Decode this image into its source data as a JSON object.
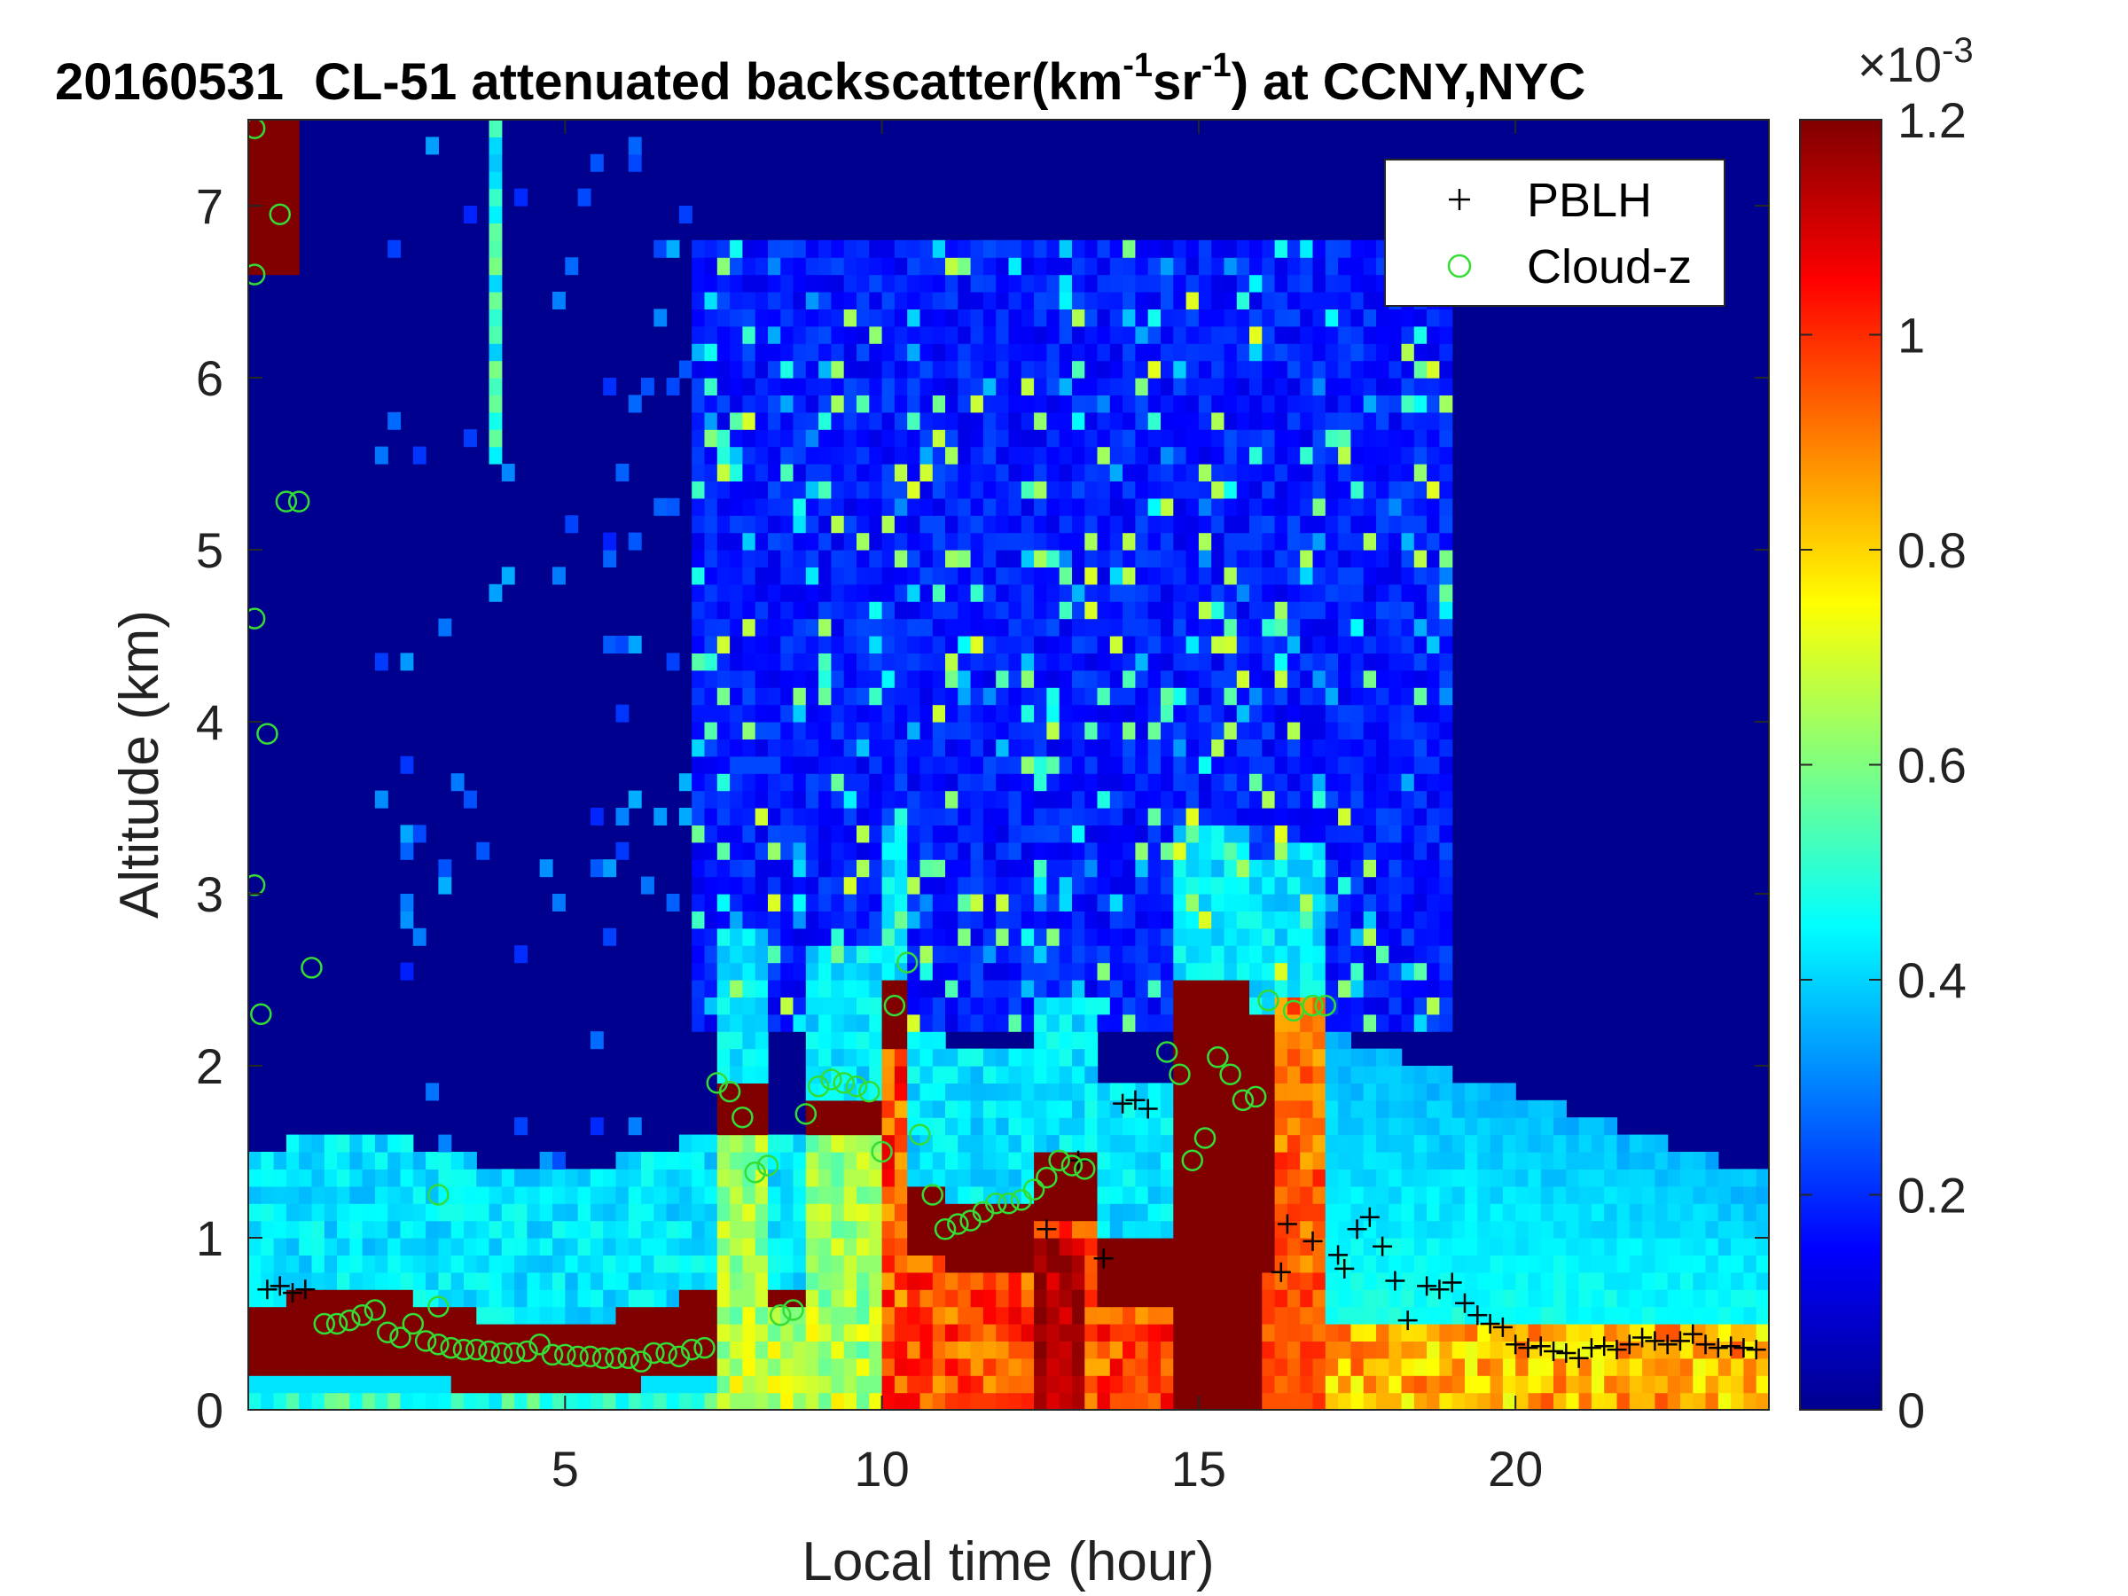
{
  "chart_data": {
    "type": "heatmap",
    "title": {
      "date": "20160531",
      "prefix": "CL-51 attenuated backscatter(km",
      "sup1": "-1",
      "mid": "sr",
      "sup2": "-1",
      "suffix": ") at CCNY,NYC"
    },
    "xlabel": "Local time (hour)",
    "ylabel": "Altitude (km)",
    "xlim": [
      0,
      24
    ],
    "ylim": [
      0,
      7.5
    ],
    "xticks": [
      5,
      10,
      15,
      20
    ],
    "yticks": [
      0,
      1,
      2,
      3,
      4,
      5,
      6,
      7
    ],
    "colorbar": {
      "colormap": "jet",
      "clim": [
        0,
        1.2
      ],
      "ticks": [
        0,
        0.2,
        0.4,
        0.6,
        0.8,
        1,
        1.2
      ],
      "tick_labels": [
        "0",
        "0.2",
        "0.4",
        "0.6",
        "0.8",
        "1",
        "1.2"
      ],
      "exponent_base": "×10",
      "exponent": "-3"
    },
    "legend": {
      "placement": "top-right",
      "entries": [
        {
          "label": "PBLH",
          "marker": "plus",
          "color": "#000000"
        },
        {
          "label": "Cloud-z",
          "marker": "circle",
          "color": "#33dd33"
        }
      ]
    },
    "grid": false,
    "series": [
      {
        "name": "PBLH",
        "marker": "plus",
        "color": "#000000",
        "x": [
          0.3,
          0.5,
          0.7,
          0.9,
          12.6,
          13.1,
          13.5,
          13.8,
          14.0,
          14.2,
          16.3,
          16.4,
          16.8,
          17.2,
          17.3,
          17.5,
          17.7,
          17.9,
          18.1,
          18.3,
          18.6,
          18.8,
          19.0,
          19.2,
          19.4,
          19.6,
          19.8,
          20.0,
          20.2,
          20.4,
          20.6,
          20.8,
          21.0,
          21.2,
          21.4,
          21.6,
          21.8,
          22.0,
          22.2,
          22.4,
          22.6,
          22.8,
          23.0,
          23.2,
          23.4,
          23.6,
          23.8
        ],
        "y": [
          0.7,
          0.72,
          0.68,
          0.7,
          1.05,
          1.45,
          0.88,
          1.78,
          1.8,
          1.75,
          0.8,
          1.08,
          0.98,
          0.9,
          0.82,
          1.05,
          1.12,
          0.95,
          0.75,
          0.52,
          0.72,
          0.7,
          0.74,
          0.62,
          0.55,
          0.5,
          0.48,
          0.38,
          0.36,
          0.37,
          0.34,
          0.33,
          0.3,
          0.36,
          0.37,
          0.35,
          0.38,
          0.42,
          0.4,
          0.38,
          0.4,
          0.44,
          0.38,
          0.36,
          0.37,
          0.36,
          0.35
        ]
      },
      {
        "name": "Cloud-z",
        "marker": "circle",
        "color": "#33dd33",
        "x": [
          0.1,
          0.1,
          0.1,
          0.1,
          0.2,
          0.3,
          0.5,
          0.6,
          0.8,
          1.0,
          1.2,
          1.4,
          1.6,
          1.8,
          2.0,
          2.2,
          2.4,
          2.6,
          2.8,
          3.0,
          3.2,
          3.4,
          3.6,
          3.8,
          4.0,
          4.2,
          4.4,
          4.6,
          4.8,
          5.0,
          5.2,
          5.4,
          5.6,
          5.8,
          6.0,
          6.2,
          6.4,
          6.6,
          6.8,
          7.0,
          7.2,
          7.4,
          7.6,
          7.8,
          8.0,
          8.2,
          8.4,
          8.6,
          8.8,
          9.0,
          9.2,
          9.4,
          9.6,
          9.8,
          10.0,
          10.2,
          10.4,
          10.6,
          10.8,
          11.0,
          11.2,
          11.4,
          11.6,
          11.8,
          12.0,
          12.2,
          12.4,
          12.6,
          12.8,
          13.0,
          13.2,
          14.5,
          14.7,
          14.9,
          15.1,
          15.3,
          15.5,
          15.7,
          15.9,
          16.1,
          16.5,
          16.8,
          17.0,
          3.0,
          3.0
        ],
        "y": [
          7.45,
          6.6,
          4.6,
          3.05,
          2.3,
          3.93,
          6.95,
          5.28,
          5.28,
          2.57,
          0.5,
          0.5,
          0.52,
          0.55,
          0.58,
          0.45,
          0.42,
          0.5,
          0.4,
          0.38,
          0.36,
          0.35,
          0.35,
          0.34,
          0.33,
          0.33,
          0.34,
          0.38,
          0.32,
          0.32,
          0.31,
          0.31,
          0.3,
          0.3,
          0.3,
          0.28,
          0.33,
          0.33,
          0.31,
          0.35,
          0.36,
          1.9,
          1.85,
          1.7,
          1.38,
          1.42,
          0.55,
          0.58,
          1.72,
          1.88,
          1.92,
          1.9,
          1.88,
          1.85,
          1.5,
          2.35,
          2.6,
          1.6,
          1.25,
          1.05,
          1.08,
          1.1,
          1.15,
          1.2,
          1.2,
          1.22,
          1.28,
          1.35,
          1.45,
          1.42,
          1.4,
          2.08,
          1.95,
          1.45,
          1.58,
          2.05,
          1.95,
          1.8,
          1.82,
          2.38,
          2.32,
          2.35,
          2.35,
          1.25,
          0.6
        ],
        "cols": "x in hours, y in km"
      }
    ]
  }
}
